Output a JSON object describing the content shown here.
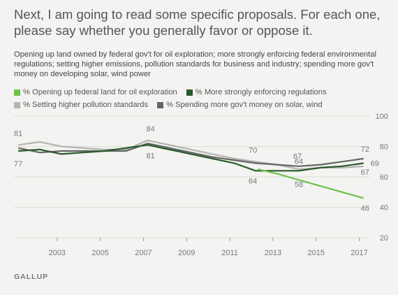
{
  "title": "Next, I am going to read some specific proposals. For each one, please say whether you generally favor or oppose it.",
  "subtitle": "Opening up land owned by federal gov't for oil exploration; more strongly enforcing federal environmental regulations; setting higher emissions, pollution standards for business and industry; spending more gov't money on developing solar, wind power",
  "footer": "GALLUP",
  "chart_data": {
    "type": "line",
    "xlim": [
      2001,
      2017.5
    ],
    "ylim": [
      20,
      100
    ],
    "xticks": [
      "2003",
      "2005",
      "2007",
      "2009",
      "2011",
      "2013",
      "2015",
      "2017"
    ],
    "yticks": [
      "20",
      "40",
      "60",
      "80",
      "100"
    ],
    "grid": true,
    "legend_position": "top",
    "series": [
      {
        "name": "% Opening up federal land for oil exploration",
        "color": "#6cc24a",
        "x": [
          2012.3,
          2013.2,
          2014.2,
          2015.2,
          2016.2,
          2017.2
        ],
        "y": [
          65,
          62,
          58,
          54,
          50,
          46
        ]
      },
      {
        "name": "% More strongly enforcing regulations",
        "color": "#2b5a2b",
        "x": [
          2001.2,
          2002.2,
          2003.2,
          2004.2,
          2005.2,
          2006.2,
          2007.2,
          2008.2,
          2009.2,
          2010.2,
          2011.2,
          2012.2,
          2013.2,
          2014.2,
          2015.2,
          2016.2,
          2017.2
        ],
        "y": [
          77,
          78,
          75,
          76,
          77,
          79,
          81,
          78,
          75,
          72,
          69,
          64,
          64,
          64,
          66,
          67,
          69
        ]
      },
      {
        "name": "% Setting higher pollution standards",
        "color": "#b4b4b0",
        "x": [
          2001.2,
          2002.2,
          2003.2,
          2004.2,
          2005.2,
          2006.2,
          2007.2,
          2008.2,
          2009.2,
          2010.2,
          2011.2,
          2012.2,
          2013.2,
          2014.2,
          2015.2,
          2016.2,
          2017.2
        ],
        "y": [
          81,
          83,
          80,
          79,
          78,
          78,
          84,
          81,
          78,
          75,
          72,
          70,
          68,
          65,
          66,
          66,
          67
        ]
      },
      {
        "name": "% Spending more gov't money on solar, wind",
        "color": "#666666",
        "x": [
          2001.2,
          2002.2,
          2003.2,
          2004.2,
          2005.2,
          2006.2,
          2007.2,
          2008.2,
          2009.2,
          2010.2,
          2011.2,
          2012.2,
          2013.2,
          2014.2,
          2015.2,
          2016.2,
          2017.2
        ],
        "y": [
          79,
          76,
          77,
          77,
          77,
          77,
          82,
          79,
          76,
          73,
          71,
          69,
          68,
          67,
          68,
          70,
          72
        ]
      }
    ],
    "data_labels": [
      {
        "x": 2001.2,
        "y": 81,
        "text": "81"
      },
      {
        "x": 2001.2,
        "y": 77,
        "text": "77"
      },
      {
        "x": 2007.2,
        "y": 84,
        "text": "84"
      },
      {
        "x": 2007.2,
        "y": 81,
        "text": "81"
      },
      {
        "x": 2012.2,
        "y": 70,
        "text": "70"
      },
      {
        "x": 2012.2,
        "y": 64,
        "text": "64"
      },
      {
        "x": 2014.2,
        "y": 67,
        "text": "67"
      },
      {
        "x": 2014.2,
        "y": 64,
        "text": "64"
      },
      {
        "x": 2014.2,
        "y": 58,
        "text": "58"
      },
      {
        "x": 2017.2,
        "y": 72,
        "text": "72"
      },
      {
        "x": 2017.2,
        "y": 69,
        "text": "69"
      },
      {
        "x": 2017.2,
        "y": 67,
        "text": "67"
      },
      {
        "x": 2017.2,
        "y": 46,
        "text": "46"
      }
    ]
  }
}
